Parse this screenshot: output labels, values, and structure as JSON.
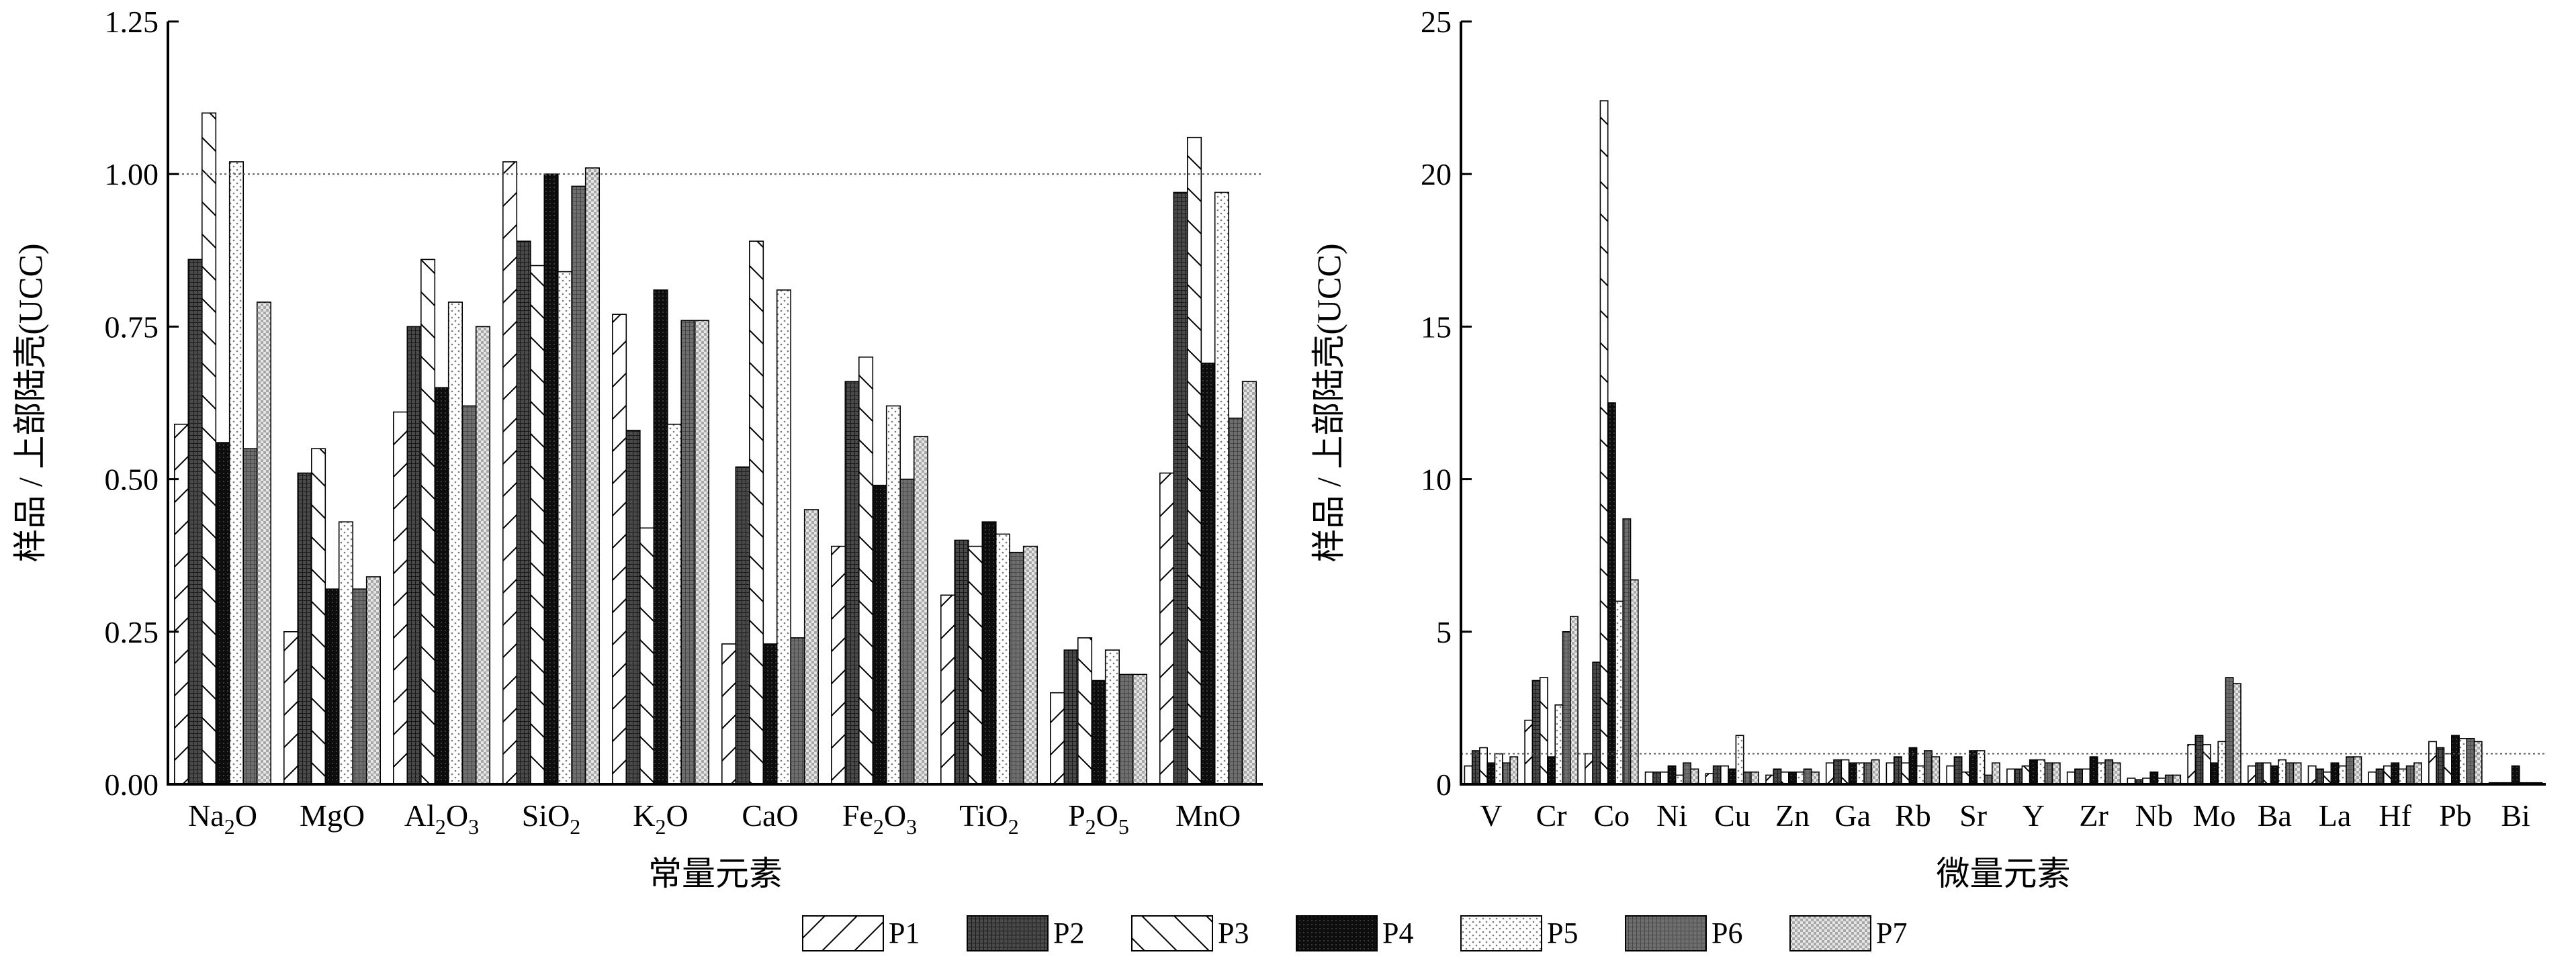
{
  "legend": [
    "P1",
    "P2",
    "P3",
    "P4",
    "P5",
    "P6",
    "P7"
  ],
  "chart_data": [
    {
      "type": "bar",
      "xlabel": "常量元素",
      "ylabel": "样品 / 上部陆壳(UCC)",
      "ylim": [
        0,
        1.25
      ],
      "yticks": [
        "0.00",
        "0.25",
        "0.50",
        "0.75",
        "1.00",
        "1.25"
      ],
      "reference_line": 1.0,
      "categories": [
        "Na2O",
        "MgO",
        "Al2O3",
        "SiO2",
        "K2O",
        "CaO",
        "Fe2O3",
        "TiO2",
        "P2O5",
        "MnO"
      ],
      "category_labels": [
        {
          "base": "Na",
          "sub": "2",
          "rest": "O"
        },
        {
          "base": "MgO",
          "sub": "",
          "rest": ""
        },
        {
          "base": "Al",
          "sub": "2",
          "rest": "O",
          "sub2": "3"
        },
        {
          "base": "SiO",
          "sub": "2",
          "rest": ""
        },
        {
          "base": "K",
          "sub": "2",
          "rest": "O"
        },
        {
          "base": "CaO",
          "sub": "",
          "rest": ""
        },
        {
          "base": "Fe",
          "sub": "2",
          "rest": "O",
          "sub2": "3"
        },
        {
          "base": "TiO",
          "sub": "2",
          "rest": ""
        },
        {
          "base": "P",
          "sub": "2",
          "rest": "O",
          "sub2": "5"
        },
        {
          "base": "MnO",
          "sub": "",
          "rest": ""
        }
      ],
      "series": [
        {
          "name": "P1",
          "values": [
            0.59,
            0.25,
            0.61,
            1.02,
            0.77,
            0.23,
            0.39,
            0.31,
            0.15,
            0.51
          ]
        },
        {
          "name": "P2",
          "values": [
            0.86,
            0.51,
            0.75,
            0.89,
            0.58,
            0.52,
            0.66,
            0.4,
            0.22,
            0.97
          ]
        },
        {
          "name": "P3",
          "values": [
            1.1,
            0.55,
            0.86,
            0.85,
            0.42,
            0.89,
            0.7,
            0.39,
            0.24,
            1.06
          ]
        },
        {
          "name": "P4",
          "values": [
            0.56,
            0.32,
            0.65,
            1.0,
            0.81,
            0.23,
            0.49,
            0.43,
            0.17,
            0.69
          ]
        },
        {
          "name": "P5",
          "values": [
            1.02,
            0.43,
            0.79,
            0.84,
            0.59,
            0.81,
            0.62,
            0.41,
            0.22,
            0.97
          ]
        },
        {
          "name": "P6",
          "values": [
            0.55,
            0.32,
            0.62,
            0.98,
            0.76,
            0.24,
            0.5,
            0.38,
            0.18,
            0.6
          ]
        },
        {
          "name": "P7",
          "values": [
            0.79,
            0.34,
            0.75,
            1.01,
            0.76,
            0.45,
            0.57,
            0.39,
            0.18,
            0.66
          ]
        }
      ]
    },
    {
      "type": "bar",
      "xlabel": "微量元素",
      "ylabel": "样品 / 上部陆壳(UCC)",
      "ylim": [
        0,
        25
      ],
      "yticks": [
        "0",
        "5",
        "10",
        "15",
        "20",
        "25"
      ],
      "reference_line": 1.0,
      "categories": [
        "V",
        "Cr",
        "Co",
        "Ni",
        "Cu",
        "Zn",
        "Ga",
        "Rb",
        "Sr",
        "Y",
        "Zr",
        "Nb",
        "Mo",
        "Ba",
        "La",
        "Hf",
        "Pb",
        "Bi"
      ],
      "series": [
        {
          "name": "P1",
          "values": [
            0.6,
            2.1,
            1.0,
            0.4,
            0.35,
            0.3,
            0.7,
            0.7,
            0.6,
            0.5,
            0.4,
            0.2,
            1.3,
            0.6,
            0.6,
            0.4,
            1.4,
            0.05
          ]
        },
        {
          "name": "P2",
          "values": [
            1.1,
            3.4,
            4.0,
            0.4,
            0.6,
            0.5,
            0.8,
            0.9,
            0.9,
            0.5,
            0.5,
            0.15,
            1.6,
            0.7,
            0.5,
            0.5,
            1.2,
            0.05
          ]
        },
        {
          "name": "P3",
          "values": [
            1.2,
            3.5,
            22.4,
            0.4,
            0.6,
            0.4,
            0.8,
            0.7,
            0.4,
            0.6,
            0.5,
            0.2,
            1.3,
            0.7,
            0.4,
            0.6,
            1.0,
            0.05
          ]
        },
        {
          "name": "P4",
          "values": [
            0.7,
            0.9,
            12.5,
            0.6,
            0.5,
            0.4,
            0.7,
            1.2,
            1.1,
            0.8,
            0.9,
            0.4,
            0.7,
            0.6,
            0.7,
            0.7,
            1.6,
            0.6
          ]
        },
        {
          "name": "P5",
          "values": [
            1.0,
            2.6,
            6.0,
            0.3,
            1.6,
            0.4,
            0.7,
            0.6,
            1.1,
            0.8,
            0.7,
            0.2,
            1.4,
            0.8,
            0.6,
            0.5,
            1.5,
            0.05
          ]
        },
        {
          "name": "P6",
          "values": [
            0.7,
            5.0,
            8.7,
            0.7,
            0.4,
            0.5,
            0.7,
            1.1,
            0.3,
            0.7,
            0.8,
            0.3,
            3.5,
            0.7,
            0.9,
            0.6,
            1.5,
            0.05
          ]
        },
        {
          "name": "P7",
          "values": [
            0.9,
            5.5,
            6.7,
            0.5,
            0.4,
            0.4,
            0.8,
            0.9,
            0.7,
            0.7,
            0.7,
            0.3,
            3.3,
            0.7,
            0.9,
            0.7,
            1.4,
            0.05
          ]
        }
      ]
    }
  ]
}
